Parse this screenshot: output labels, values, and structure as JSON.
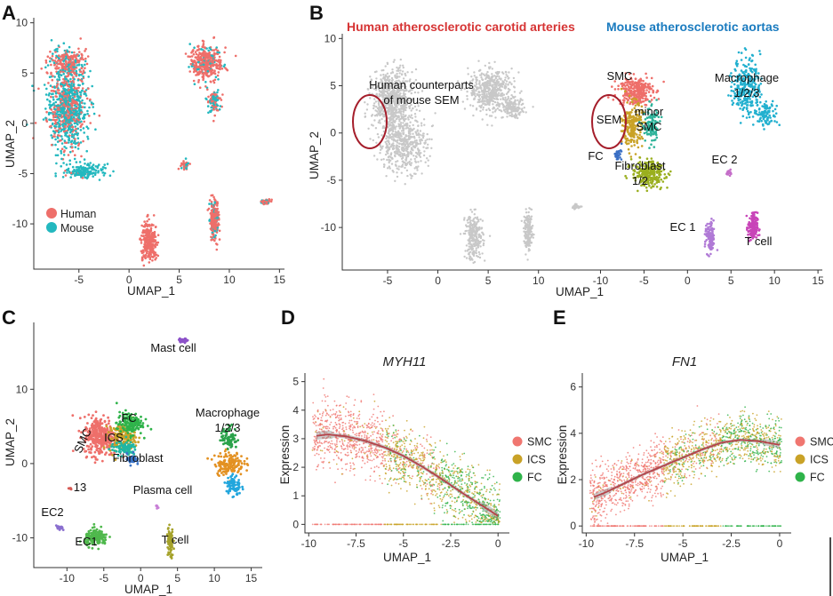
{
  "chart_data": [
    {
      "panel": "A",
      "type": "scatter",
      "xlabel": "UMAP_1",
      "ylabel": "UMAP_2",
      "x_ticks": [
        -5,
        0,
        5,
        10,
        15
      ],
      "y_ticks": [
        10,
        5,
        0,
        -5,
        -10
      ],
      "xlim": [
        -9.5,
        15.5
      ],
      "ylim": [
        -14.5,
        10.5
      ],
      "legend_position": "bottom-left",
      "series": [
        {
          "name": "Human",
          "color": "#ee6f6a"
        },
        {
          "name": "Mouse",
          "color": "#23b8bf"
        }
      ],
      "clusters": [
        {
          "center": [
            -6.2,
            1.5
          ],
          "spread": [
            1.8,
            3.5
          ],
          "n": 900,
          "mix": 0.35
        },
        {
          "center": [
            -6.0,
            6.0
          ],
          "spread": [
            1.6,
            1.3
          ],
          "n": 260,
          "mix": 0.7
        },
        {
          "center": [
            -4.5,
            -4.8
          ],
          "spread": [
            1.7,
            0.7
          ],
          "n": 160,
          "mix": 0.05
        },
        {
          "center": [
            7.7,
            6.0
          ],
          "spread": [
            1.4,
            1.6
          ],
          "n": 380,
          "mix": 0.85
        },
        {
          "center": [
            8.5,
            2.2
          ],
          "spread": [
            0.6,
            1.2
          ],
          "n": 100,
          "mix": 0.5
        },
        {
          "center": [
            5.6,
            -4.2
          ],
          "spread": [
            0.35,
            0.35
          ],
          "n": 50,
          "mix": 0.6
        },
        {
          "center": [
            8.5,
            -9.5
          ],
          "spread": [
            0.4,
            1.8
          ],
          "n": 220,
          "mix": 0.8
        },
        {
          "center": [
            2.0,
            -11.8
          ],
          "spread": [
            0.7,
            1.8
          ],
          "n": 260,
          "mix": 1.0
        },
        {
          "center": [
            13.6,
            -7.8
          ],
          "spread": [
            0.5,
            0.2
          ],
          "n": 50,
          "mix": 0.8
        }
      ]
    },
    {
      "panel": "B",
      "type": "scatter",
      "xlabel": "UMAP_1",
      "ylabel": "UMAP_2",
      "left_title": "Human atherosclerotic carotid arteries",
      "right_title": "Mouse atherosclerotic aortas",
      "left_title_color": "#d63434",
      "right_title_color": "#1a7bbf",
      "left_x_ticks": [
        -5,
        0,
        5,
        10
      ],
      "right_x_ticks": [
        -10,
        -5,
        0,
        5,
        10,
        15
      ],
      "y_ticks": [
        10,
        5,
        0,
        -5,
        -10
      ],
      "ylim": [
        -14.5,
        10.5
      ],
      "human_color": "#c8c8c8",
      "annotations": [
        "Human counterparts",
        "of mouse SEM",
        "SMC",
        "SEM",
        "minor",
        "SMC",
        "FC",
        "Fibroblast",
        "1/2",
        "Macrophage",
        "1/2/3",
        "EC 2",
        "EC 1",
        "T cell"
      ],
      "clusters": [
        {
          "name": "SMC",
          "color": "#ee6f6a"
        },
        {
          "name": "SEM",
          "color": "#c9a227"
        },
        {
          "name": "minor SMC",
          "color": "#2eb39a"
        },
        {
          "name": "FC",
          "color": "#3a6fc4"
        },
        {
          "name": "Fibroblast 1/2",
          "color": "#9aaf1f"
        },
        {
          "name": "Macrophage 1/2/3",
          "color": "#22b0cf"
        },
        {
          "name": "EC 2",
          "color": "#c56ec9"
        },
        {
          "name": "EC 1",
          "color": "#b07ad6"
        },
        {
          "name": "T cell",
          "color": "#c844b8"
        }
      ]
    },
    {
      "panel": "C",
      "type": "scatter",
      "xlabel": "UMAP_1",
      "ylabel": "UMAP_2",
      "x_ticks": [
        -10,
        -5,
        0,
        5,
        10,
        15
      ],
      "y_ticks": [
        10,
        0,
        -10
      ],
      "xlim": [
        -14.5,
        16.5
      ],
      "ylim": [
        -14,
        19
      ],
      "annotations": [
        "Mast cell",
        "Macrophage",
        "1/2/3",
        "SMC",
        "ICS",
        "FC",
        "Fibroblast",
        "Plasma cell",
        "13",
        "EC2",
        "EC1",
        "T cell"
      ]
    },
    {
      "panel": "D",
      "type": "scatter",
      "title": "MYH11",
      "xlabel": "UMAP_1",
      "ylabel": "Expression",
      "x_ticks": [
        -10,
        -7.5,
        -5.0,
        -2.5,
        0
      ],
      "y_ticks": [
        0,
        1,
        2,
        3,
        4,
        5
      ],
      "xlim": [
        -10.2,
        0.6
      ],
      "ylim": [
        -0.3,
        5.3
      ],
      "series": [
        {
          "name": "SMC",
          "color": "#f07670"
        },
        {
          "name": "ICS",
          "color": "#c9a227"
        },
        {
          "name": "FC",
          "color": "#2fb34a"
        }
      ],
      "trend_x": [
        -9.6,
        -9,
        -8,
        -7,
        -6,
        -5,
        -4,
        -3,
        -2,
        -1,
        0
      ],
      "trend_y": [
        3.1,
        3.15,
        3.08,
        2.92,
        2.7,
        2.4,
        2.02,
        1.6,
        1.15,
        0.72,
        0.3
      ]
    },
    {
      "panel": "E",
      "type": "scatter",
      "title": "FN1",
      "xlabel": "UMAP_1",
      "ylabel": "Expression",
      "x_ticks": [
        -10,
        -7.5,
        -5.0,
        -2.5,
        0
      ],
      "y_ticks": [
        0,
        2,
        4,
        6
      ],
      "xlim": [
        -10.2,
        0.6
      ],
      "ylim": [
        -0.3,
        6.6
      ],
      "series": [
        {
          "name": "SMC",
          "color": "#f07670"
        },
        {
          "name": "ICS",
          "color": "#c9a227"
        },
        {
          "name": "FC",
          "color": "#2fb34a"
        }
      ],
      "trend_x": [
        -9.6,
        -9,
        -8,
        -7,
        -6,
        -5,
        -4,
        -3,
        -2,
        -1,
        0
      ],
      "trend_y": [
        1.25,
        1.45,
        1.85,
        2.25,
        2.6,
        2.95,
        3.3,
        3.6,
        3.72,
        3.65,
        3.5
      ]
    }
  ]
}
